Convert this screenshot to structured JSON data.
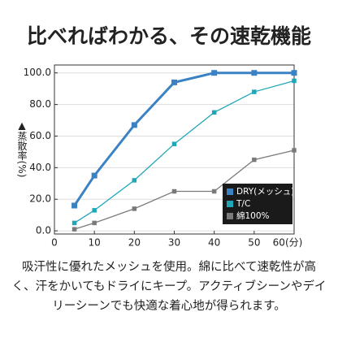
{
  "chart_data": {
    "type": "line",
    "title": "比べればわかる、その速乾機能",
    "ylabel": "▲蒸散率(%)",
    "x": [
      5,
      10,
      20,
      30,
      40,
      50,
      60
    ],
    "series": [
      {
        "name": "DRY(メッシュ)",
        "color": "#3b82c4",
        "values": [
          16,
          35,
          67,
          94,
          100,
          100,
          100
        ]
      },
      {
        "name": "T/C",
        "color": "#1fa7b8",
        "values": [
          5,
          13,
          32,
          55,
          75,
          88,
          95
        ]
      },
      {
        "name": "綿100%",
        "color": "#7a7a7a",
        "values": [
          1,
          5,
          14,
          25,
          25,
          45,
          51
        ]
      }
    ],
    "xlim": [
      0,
      60
    ],
    "ylim": [
      -2,
      105
    ],
    "xticks": [
      0,
      10,
      20,
      30,
      40,
      50,
      {
        "value": 60,
        "label": "60(分)"
      }
    ],
    "yticks": [
      {
        "value": 0,
        "label": "0.0"
      },
      {
        "value": 20,
        "label": "20.0"
      },
      {
        "value": 40,
        "label": "40.0"
      },
      {
        "value": 60,
        "label": "60.0"
      },
      {
        "value": 80,
        "label": "80.0"
      },
      {
        "value": 100,
        "label": "100.0"
      }
    ],
    "grid": true,
    "legend": "lower right"
  },
  "description": {
    "lines": [
      "吸汗性に優れたメッシュを使用。綿に比べて速乾性が高",
      "く、汗をかいてもドライにキープ。アクティブシーンやデイ",
      "リーシーンでも快適な着心地が得られます。"
    ]
  }
}
